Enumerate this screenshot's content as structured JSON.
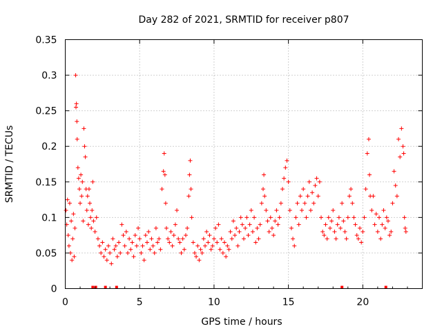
{
  "chart_data": {
    "type": "scatter",
    "title": "Day 282 of 2021, SRMTID for receiver p807",
    "xlabel": "GPS time / hours",
    "ylabel": "SRMTID / TECUs",
    "xlim": [
      0,
      24
    ],
    "ylim": [
      0,
      0.35
    ],
    "grid": true,
    "marker": "+",
    "color": "#ff0000",
    "x_ticks": [
      {
        "value": 0,
        "label": "0"
      },
      {
        "value": 5,
        "label": "5"
      },
      {
        "value": 10,
        "label": "10"
      },
      {
        "value": 15,
        "label": "15"
      },
      {
        "value": 20,
        "label": "20"
      }
    ],
    "y_ticks": [
      {
        "value": 0,
        "label": "0"
      },
      {
        "value": 0.05,
        "label": "0.05"
      },
      {
        "value": 0.1,
        "label": "0.1"
      },
      {
        "value": 0.15,
        "label": "0.15"
      },
      {
        "value": 0.2,
        "label": "0.2"
      },
      {
        "value": 0.25,
        "label": "0.25"
      },
      {
        "value": 0.3,
        "label": "0.3"
      },
      {
        "value": 0.35,
        "label": "0.35"
      }
    ],
    "series": [
      {
        "name": "SRMTID",
        "points": [
          [
            0.05,
            0.11
          ],
          [
            0.1,
            0.09
          ],
          [
            0.15,
            0.125
          ],
          [
            0.2,
            0.075
          ],
          [
            0.25,
            0.06
          ],
          [
            0.3,
            0.12
          ],
          [
            0.35,
            0.05
          ],
          [
            0.4,
            0.095
          ],
          [
            0.45,
            0.04
          ],
          [
            0.5,
            0.07
          ],
          [
            0.55,
            0.105
          ],
          [
            0.6,
            0.045
          ],
          [
            0.65,
            0.085
          ],
          [
            0.7,
            0.3
          ],
          [
            0.72,
            0.255
          ],
          [
            0.75,
            0.26
          ],
          [
            0.78,
            0.235
          ],
          [
            0.8,
            0.21
          ],
          [
            0.85,
            0.17
          ],
          [
            0.9,
            0.155
          ],
          [
            0.95,
            0.14
          ],
          [
            1.0,
            0.12
          ],
          [
            1.05,
            0.16
          ],
          [
            1.1,
            0.13
          ],
          [
            1.15,
            0.15
          ],
          [
            1.2,
            0.095
          ],
          [
            1.25,
            0.225
          ],
          [
            1.3,
            0.2
          ],
          [
            1.35,
            0.185
          ],
          [
            1.4,
            0.14
          ],
          [
            1.45,
            0.11
          ],
          [
            1.5,
            0.13
          ],
          [
            1.55,
            0.09
          ],
          [
            1.6,
            0.14
          ],
          [
            1.65,
            0.12
          ],
          [
            1.7,
            0.1
          ],
          [
            1.75,
            0.085
          ],
          [
            1.8,
            0.11
          ],
          [
            1.85,
            0.15
          ],
          [
            1.9,
            0.095
          ],
          [
            2.0,
            0.08
          ],
          [
            2.1,
            0.1
          ],
          [
            2.2,
            0.07
          ],
          [
            2.3,
            0.06
          ],
          [
            2.4,
            0.05
          ],
          [
            2.5,
            0.065
          ],
          [
            2.6,
            0.045
          ],
          [
            2.7,
            0.055
          ],
          [
            2.8,
            0.04
          ],
          [
            2.9,
            0.06
          ],
          [
            3.0,
            0.05
          ],
          [
            3.1,
            0.035
          ],
          [
            3.2,
            0.07
          ],
          [
            3.3,
            0.055
          ],
          [
            3.4,
            0.06
          ],
          [
            3.5,
            0.045
          ],
          [
            3.6,
            0.065
          ],
          [
            3.7,
            0.05
          ],
          [
            3.8,
            0.09
          ],
          [
            3.9,
            0.075
          ],
          [
            4.0,
            0.06
          ],
          [
            4.1,
            0.08
          ],
          [
            4.2,
            0.05
          ],
          [
            4.3,
            0.07
          ],
          [
            4.4,
            0.055
          ],
          [
            4.5,
            0.065
          ],
          [
            4.6,
            0.045
          ],
          [
            4.7,
            0.075
          ],
          [
            4.8,
            0.06
          ],
          [
            4.9,
            0.085
          ],
          [
            5.0,
            0.07
          ],
          [
            5.1,
            0.05
          ],
          [
            5.2,
            0.06
          ],
          [
            5.3,
            0.04
          ],
          [
            5.4,
            0.075
          ],
          [
            5.5,
            0.065
          ],
          [
            5.6,
            0.08
          ],
          [
            5.7,
            0.055
          ],
          [
            5.8,
            0.07
          ],
          [
            5.9,
            0.06
          ],
          [
            6.0,
            0.05
          ],
          [
            6.1,
            0.085
          ],
          [
            6.2,
            0.065
          ],
          [
            6.3,
            0.07
          ],
          [
            6.4,
            0.055
          ],
          [
            6.5,
            0.14
          ],
          [
            6.6,
            0.165
          ],
          [
            6.65,
            0.19
          ],
          [
            6.7,
            0.16
          ],
          [
            6.75,
            0.12
          ],
          [
            6.8,
            0.085
          ],
          [
            6.9,
            0.07
          ],
          [
            7.0,
            0.065
          ],
          [
            7.1,
            0.08
          ],
          [
            7.2,
            0.06
          ],
          [
            7.3,
            0.075
          ],
          [
            7.4,
            0.09
          ],
          [
            7.5,
            0.11
          ],
          [
            7.6,
            0.07
          ],
          [
            7.7,
            0.065
          ],
          [
            7.8,
            0.05
          ],
          [
            7.9,
            0.07
          ],
          [
            8.0,
            0.055
          ],
          [
            8.1,
            0.075
          ],
          [
            8.2,
            0.085
          ],
          [
            8.3,
            0.13
          ],
          [
            8.35,
            0.16
          ],
          [
            8.4,
            0.18
          ],
          [
            8.45,
            0.14
          ],
          [
            8.5,
            0.1
          ],
          [
            8.6,
            0.065
          ],
          [
            8.7,
            0.05
          ],
          [
            8.8,
            0.045
          ],
          [
            8.9,
            0.06
          ],
          [
            9.0,
            0.04
          ],
          [
            9.1,
            0.055
          ],
          [
            9.2,
            0.05
          ],
          [
            9.3,
            0.07
          ],
          [
            9.4,
            0.06
          ],
          [
            9.5,
            0.08
          ],
          [
            9.6,
            0.065
          ],
          [
            9.7,
            0.075
          ],
          [
            9.8,
            0.055
          ],
          [
            9.9,
            0.06
          ],
          [
            10.0,
            0.07
          ],
          [
            10.1,
            0.085
          ],
          [
            10.2,
            0.065
          ],
          [
            10.3,
            0.09
          ],
          [
            10.4,
            0.055
          ],
          [
            10.5,
            0.07
          ],
          [
            10.6,
            0.05
          ],
          [
            10.7,
            0.065
          ],
          [
            10.8,
            0.045
          ],
          [
            10.9,
            0.06
          ],
          [
            11.0,
            0.055
          ],
          [
            11.1,
            0.08
          ],
          [
            11.2,
            0.07
          ],
          [
            11.3,
            0.095
          ],
          [
            11.4,
            0.075
          ],
          [
            11.5,
            0.085
          ],
          [
            11.6,
            0.06
          ],
          [
            11.7,
            0.08
          ],
          [
            11.8,
            0.1
          ],
          [
            11.9,
            0.09
          ],
          [
            12.0,
            0.07
          ],
          [
            12.1,
            0.085
          ],
          [
            12.2,
            0.1
          ],
          [
            12.3,
            0.075
          ],
          [
            12.4,
            0.09
          ],
          [
            12.5,
            0.11
          ],
          [
            12.6,
            0.08
          ],
          [
            12.7,
            0.1
          ],
          [
            12.8,
            0.065
          ],
          [
            12.9,
            0.085
          ],
          [
            13.0,
            0.07
          ],
          [
            13.1,
            0.09
          ],
          [
            13.2,
            0.12
          ],
          [
            13.3,
            0.14
          ],
          [
            13.35,
            0.16
          ],
          [
            13.4,
            0.13
          ],
          [
            13.5,
            0.11
          ],
          [
            13.6,
            0.095
          ],
          [
            13.7,
            0.08
          ],
          [
            13.8,
            0.1
          ],
          [
            13.9,
            0.085
          ],
          [
            14.0,
            0.075
          ],
          [
            14.1,
            0.095
          ],
          [
            14.2,
            0.11
          ],
          [
            14.3,
            0.09
          ],
          [
            14.4,
            0.1
          ],
          [
            14.5,
            0.12
          ],
          [
            14.6,
            0.14
          ],
          [
            14.7,
            0.155
          ],
          [
            14.8,
            0.17
          ],
          [
            14.9,
            0.18
          ],
          [
            15.0,
            0.15
          ],
          [
            15.1,
            0.11
          ],
          [
            15.2,
            0.085
          ],
          [
            15.3,
            0.07
          ],
          [
            15.4,
            0.06
          ],
          [
            15.5,
            0.1
          ],
          [
            15.6,
            0.12
          ],
          [
            15.7,
            0.09
          ],
          [
            15.8,
            0.13
          ],
          [
            15.9,
            0.11
          ],
          [
            16.0,
            0.14
          ],
          [
            16.1,
            0.12
          ],
          [
            16.2,
            0.1
          ],
          [
            16.3,
            0.13
          ],
          [
            16.4,
            0.15
          ],
          [
            16.5,
            0.11
          ],
          [
            16.6,
            0.135
          ],
          [
            16.7,
            0.12
          ],
          [
            16.8,
            0.145
          ],
          [
            16.9,
            0.155
          ],
          [
            17.0,
            0.13
          ],
          [
            17.1,
            0.15
          ],
          [
            17.2,
            0.1
          ],
          [
            17.3,
            0.08
          ],
          [
            17.4,
            0.075
          ],
          [
            17.5,
            0.09
          ],
          [
            17.6,
            0.07
          ],
          [
            17.7,
            0.1
          ],
          [
            17.8,
            0.085
          ],
          [
            17.9,
            0.095
          ],
          [
            18.0,
            0.11
          ],
          [
            18.1,
            0.08
          ],
          [
            18.2,
            0.07
          ],
          [
            18.3,
            0.09
          ],
          [
            18.4,
            0.1
          ],
          [
            18.5,
            0.085
          ],
          [
            18.6,
            0.12
          ],
          [
            18.7,
            0.095
          ],
          [
            18.8,
            0.08
          ],
          [
            18.9,
            0.07
          ],
          [
            19.0,
            0.1
          ],
          [
            19.1,
            0.13
          ],
          [
            19.2,
            0.14
          ],
          [
            19.3,
            0.12
          ],
          [
            19.4,
            0.1
          ],
          [
            19.5,
            0.09
          ],
          [
            19.6,
            0.075
          ],
          [
            19.7,
            0.07
          ],
          [
            19.8,
            0.085
          ],
          [
            19.9,
            0.065
          ],
          [
            20.0,
            0.08
          ],
          [
            20.1,
            0.1
          ],
          [
            20.2,
            0.14
          ],
          [
            20.3,
            0.19
          ],
          [
            20.4,
            0.21
          ],
          [
            20.45,
            0.16
          ],
          [
            20.5,
            0.13
          ],
          [
            20.6,
            0.11
          ],
          [
            20.7,
            0.13
          ],
          [
            20.8,
            0.09
          ],
          [
            20.9,
            0.105
          ],
          [
            21.0,
            0.08
          ],
          [
            21.1,
            0.1
          ],
          [
            21.2,
            0.07
          ],
          [
            21.3,
            0.09
          ],
          [
            21.4,
            0.11
          ],
          [
            21.5,
            0.085
          ],
          [
            21.6,
            0.1
          ],
          [
            21.7,
            0.095
          ],
          [
            21.8,
            0.075
          ],
          [
            21.9,
            0.08
          ],
          [
            22.0,
            0.12
          ],
          [
            22.1,
            0.165
          ],
          [
            22.2,
            0.145
          ],
          [
            22.3,
            0.13
          ],
          [
            22.4,
            0.21
          ],
          [
            22.5,
            0.185
          ],
          [
            22.6,
            0.225
          ],
          [
            22.7,
            0.2
          ],
          [
            22.75,
            0.19
          ],
          [
            22.8,
            0.1
          ],
          [
            22.85,
            0.085
          ],
          [
            22.9,
            0.08
          ]
        ]
      }
    ],
    "data_gap_markers_x": [
      1.85,
      2.05,
      2.7,
      3.45,
      18.6,
      21.55
    ]
  }
}
